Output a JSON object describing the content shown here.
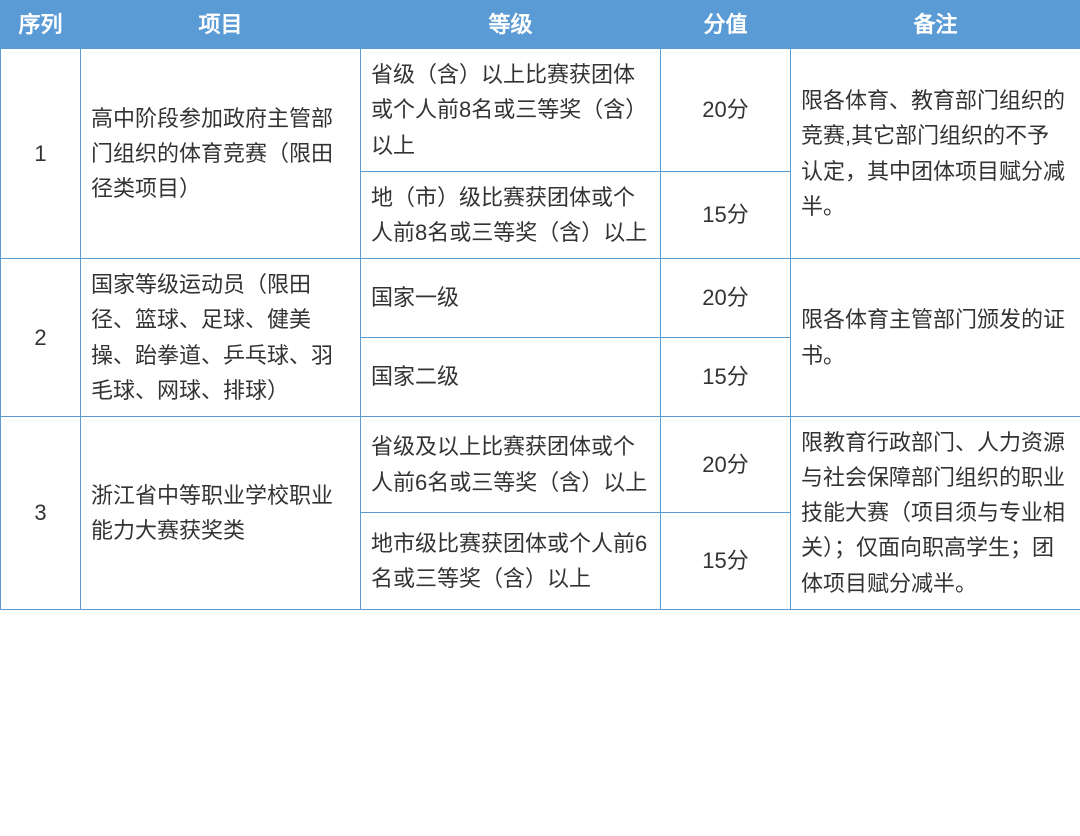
{
  "table": {
    "headers": {
      "seq": "序列",
      "item": "项目",
      "level": "等级",
      "score": "分值",
      "note": "备注"
    },
    "columns": {
      "seq_width": 80,
      "item_width": 280,
      "level_width": 300,
      "score_width": 130,
      "note_width": 290
    },
    "colors": {
      "header_bg": "#5b9bd5",
      "header_fg": "#ffffff",
      "border": "#5b9bd5",
      "body_fg": "#333333",
      "body_bg": "#ffffff"
    },
    "font": {
      "header_size": 22,
      "body_size": 22,
      "line_height": 1.6
    },
    "rows": [
      {
        "seq": "1",
        "item": "高中阶段参加政府主管部门组织的体育竞赛（限田径类项目）",
        "levels": [
          {
            "level": "省级（含）以上比赛获团体或个人前8名或三等奖（含）以上",
            "score": "20分"
          },
          {
            "level": "地（市）级比赛获团体或个人前8名或三等奖（含）以上",
            "score": "15分"
          }
        ],
        "note": "限各体育、教育部门组织的竞赛,其它部门组织的不予认定，其中团体项目赋分减半。"
      },
      {
        "seq": "2",
        "item": "国家等级运动员（限田径、篮球、足球、健美操、跆拳道、乒乓球、羽毛球、网球、排球）",
        "levels": [
          {
            "level": "国家一级",
            "score": "20分"
          },
          {
            "level": "国家二级",
            "score": "15分"
          }
        ],
        "note": "限各体育主管部门颁发的证书。"
      },
      {
        "seq": "3",
        "item": "浙江省中等职业学校职业能力大赛获奖类",
        "levels": [
          {
            "level": "省级及以上比赛获团体或个人前6名或三等奖（含）以上",
            "score": "20分"
          },
          {
            "level": "地市级比赛获团体或个人前6名或三等奖（含）以上",
            "score": "15分"
          }
        ],
        "note": "限教育行政部门、人力资源与社会保障部门组织的职业技能大赛（项目须与专业相关）；仅面向职高学生；团体项目赋分减半。"
      }
    ]
  }
}
